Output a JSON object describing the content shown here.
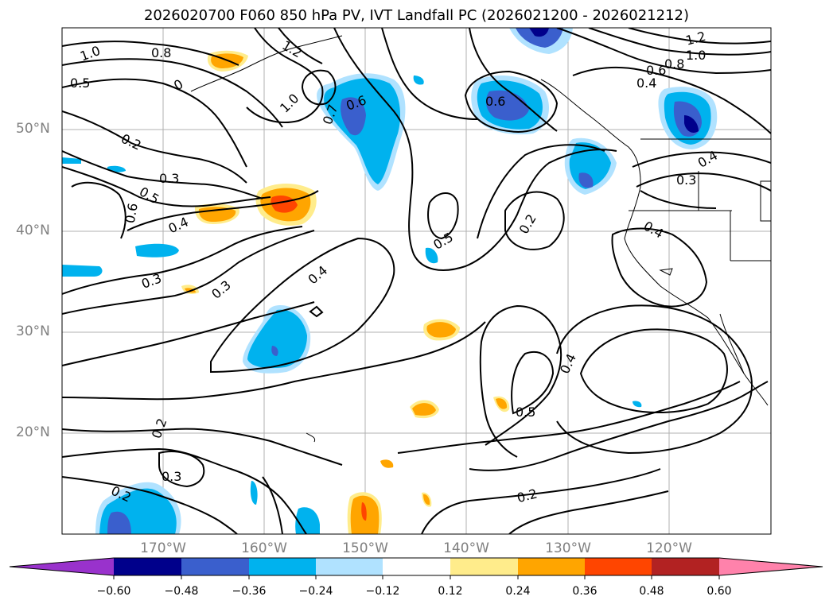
{
  "title": "2026020700 F060 850 hPa PV, IVT Landfall PC (2026021200 - 2026021212)",
  "map": {
    "region": "North Pacific",
    "lat_ticks": [
      "50°N",
      "40°N",
      "30°N",
      "20°N"
    ],
    "lon_ticks": [
      "170°W",
      "160°W",
      "150°W",
      "140°W",
      "130°W",
      "120°W"
    ],
    "gridlines": true,
    "contour_color": "#000000",
    "contour_labels": [
      "1.0",
      "0.8",
      "0.5",
      "0",
      "1.2",
      "1.0",
      "0.6",
      "0.6",
      "0.7",
      "0.8",
      "1.2",
      "1.0",
      "0.6",
      "0.4",
      "0.2",
      "0.3",
      "0.5",
      "0.6",
      "0.4",
      "0.3",
      "0.3",
      "0.4",
      "0.5",
      "0.2",
      "0.4",
      "0.3",
      "0.4",
      "0.2",
      "0.3",
      "0.2",
      "0.2",
      "0.5",
      "0.4"
    ]
  },
  "colorbar": {
    "ticks": [
      "−0.60",
      "−0.48",
      "−0.36",
      "−0.24",
      "−0.12",
      "0.12",
      "0.24",
      "0.36",
      "0.48",
      "0.60"
    ],
    "colors": [
      "#9932cc",
      "#00008b",
      "#3a5fcd",
      "#00b2ee",
      "#b0e2ff",
      "#ffffff",
      "#ffec8b",
      "#ffa500",
      "#ff4500",
      "#b22222",
      "#ff82ab"
    ]
  }
}
